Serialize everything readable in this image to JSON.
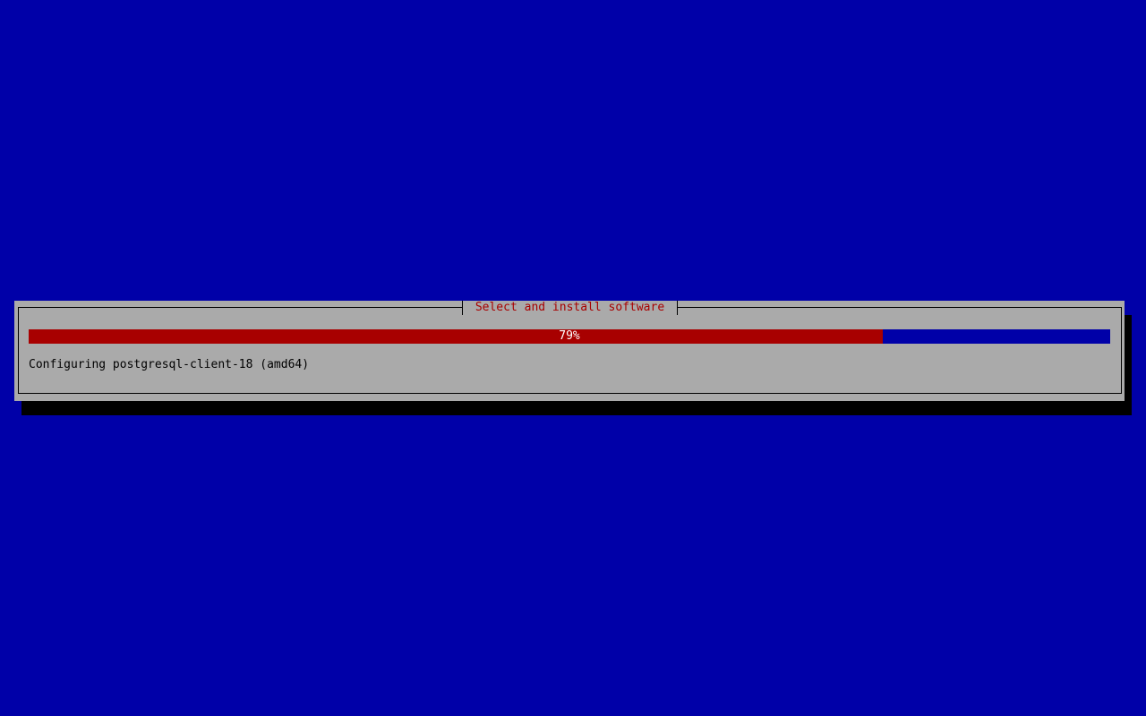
{
  "dialog": {
    "title": "Select and install software",
    "progress": {
      "percent": 79,
      "label": "79%"
    },
    "status_text": "Configuring postgresql-client-18 (amd64)"
  },
  "colors": {
    "background": "#0000a8",
    "dialog": "#aaaaaa",
    "progress_fill": "#a80000",
    "title": "#a80000"
  }
}
